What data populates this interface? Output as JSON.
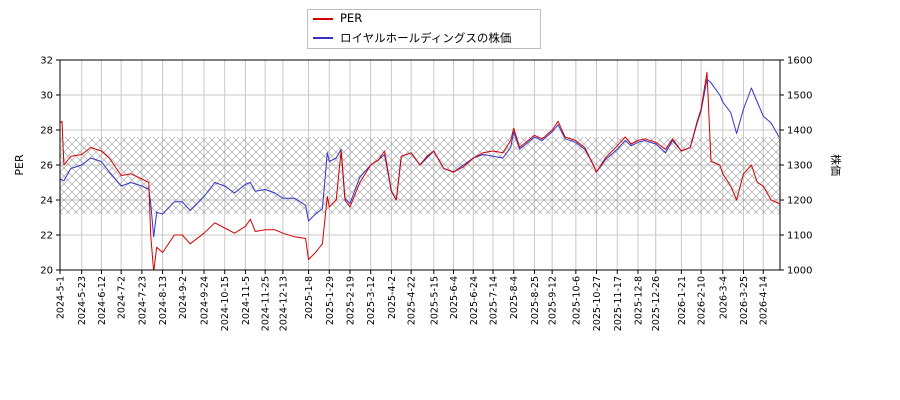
{
  "chart_data": {
    "type": "line",
    "legend": [
      {
        "name": "PER",
        "color": "#d40000"
      },
      {
        "name": "ロイヤルホールディングスの株価",
        "color": "#3333cc"
      }
    ],
    "ylabel_left": "PER",
    "ylabel_right": "株価",
    "ylim_left": [
      20,
      32
    ],
    "ylim_right": [
      1000,
      1600
    ],
    "yticks_left": [
      "20",
      "22",
      "24",
      "26",
      "28",
      "30",
      "32"
    ],
    "yticks_right": [
      "1000",
      "1100",
      "1200",
      "1300",
      "1400",
      "1500",
      "1600"
    ],
    "xlim": [
      "2024-05-01",
      "2026-05-01"
    ],
    "xticks": [
      "2024-5-1",
      "2024-5-23",
      "2024-6-12",
      "2024-7-2",
      "2024-7-23",
      "2024-8-13",
      "2024-9-2",
      "2024-9-24",
      "2024-10-15",
      "2024-11-5",
      "2024-11-25",
      "2024-12-13",
      "2025-1-8",
      "2025-1-29",
      "2025-2-19",
      "2025-3-12",
      "2025-4-2",
      "2025-4-22",
      "2025-5-15",
      "2025-6-4",
      "2025-6-24",
      "2025-7-14",
      "2025-8-4",
      "2025-8-25",
      "2025-9-12",
      "2025-10-6",
      "2025-10-27",
      "2025-11-17",
      "2025-12-8",
      "2025-12-26",
      "2026-1-21",
      "2026-2-10",
      "2026-3-4",
      "2026-3-25",
      "2026-4-14"
    ],
    "band": {
      "from": 23.2,
      "to": 27.6,
      "axis": "left",
      "pattern": "crosshatch"
    },
    "grid": true,
    "legend_position": "top-center",
    "series": [
      {
        "name": "PER",
        "axis": "left",
        "color": "#d40000",
        "points": [
          [
            "2024-05-01",
            28.4
          ],
          [
            "2024-05-03",
            28.5
          ],
          [
            "2024-05-05",
            26.0
          ],
          [
            "2024-05-12",
            26.5
          ],
          [
            "2024-05-23",
            26.6
          ],
          [
            "2024-06-01",
            27.0
          ],
          [
            "2024-06-12",
            26.8
          ],
          [
            "2024-06-20",
            26.4
          ],
          [
            "2024-07-02",
            25.4
          ],
          [
            "2024-07-12",
            25.5
          ],
          [
            "2024-07-23",
            25.2
          ],
          [
            "2024-07-30",
            25.0
          ],
          [
            "2024-08-01",
            22.0
          ],
          [
            "2024-08-04",
            19.9
          ],
          [
            "2024-08-07",
            21.3
          ],
          [
            "2024-08-13",
            21.0
          ],
          [
            "2024-08-25",
            22.0
          ],
          [
            "2024-09-02",
            22.0
          ],
          [
            "2024-09-10",
            21.5
          ],
          [
            "2024-09-24",
            22.1
          ],
          [
            "2024-10-05",
            22.7
          ],
          [
            "2024-10-15",
            22.4
          ],
          [
            "2024-10-25",
            22.1
          ],
          [
            "2024-11-05",
            22.5
          ],
          [
            "2024-11-10",
            22.9
          ],
          [
            "2024-11-15",
            22.2
          ],
          [
            "2024-11-25",
            22.3
          ],
          [
            "2024-12-05",
            22.3
          ],
          [
            "2024-12-13",
            22.1
          ],
          [
            "2024-12-25",
            21.9
          ],
          [
            "2025-01-05",
            21.8
          ],
          [
            "2025-01-08",
            20.6
          ],
          [
            "2025-01-15",
            21.0
          ],
          [
            "2025-01-22",
            21.5
          ],
          [
            "2025-01-27",
            24.2
          ],
          [
            "2025-01-29",
            23.6
          ],
          [
            "2025-02-05",
            24.0
          ],
          [
            "2025-02-10",
            26.8
          ],
          [
            "2025-02-14",
            24.0
          ],
          [
            "2025-02-19",
            23.6
          ],
          [
            "2025-03-01",
            25.0
          ],
          [
            "2025-03-12",
            26.0
          ],
          [
            "2025-03-20",
            26.3
          ],
          [
            "2025-03-26",
            26.8
          ],
          [
            "2025-04-02",
            24.5
          ],
          [
            "2025-04-07",
            24.0
          ],
          [
            "2025-04-12",
            26.5
          ],
          [
            "2025-04-22",
            26.7
          ],
          [
            "2025-05-01",
            26.0
          ],
          [
            "2025-05-08",
            26.5
          ],
          [
            "2025-05-15",
            26.8
          ],
          [
            "2025-05-25",
            25.8
          ],
          [
            "2025-06-04",
            25.6
          ],
          [
            "2025-06-14",
            25.9
          ],
          [
            "2025-06-24",
            26.4
          ],
          [
            "2025-07-04",
            26.7
          ],
          [
            "2025-07-14",
            26.8
          ],
          [
            "2025-07-24",
            26.7
          ],
          [
            "2025-08-01",
            27.4
          ],
          [
            "2025-08-04",
            28.1
          ],
          [
            "2025-08-10",
            27.0
          ],
          [
            "2025-08-25",
            27.7
          ],
          [
            "2025-09-02",
            27.5
          ],
          [
            "2025-09-12",
            28.0
          ],
          [
            "2025-09-18",
            28.5
          ],
          [
            "2025-09-25",
            27.6
          ],
          [
            "2025-10-06",
            27.4
          ],
          [
            "2025-10-15",
            27.0
          ],
          [
            "2025-10-22",
            26.2
          ],
          [
            "2025-10-27",
            25.6
          ],
          [
            "2025-11-05",
            26.4
          ],
          [
            "2025-11-17",
            27.1
          ],
          [
            "2025-11-25",
            27.6
          ],
          [
            "2025-12-01",
            27.2
          ],
          [
            "2025-12-08",
            27.4
          ],
          [
            "2025-12-15",
            27.5
          ],
          [
            "2025-12-26",
            27.3
          ],
          [
            "2026-01-05",
            26.9
          ],
          [
            "2026-01-12",
            27.5
          ],
          [
            "2026-01-21",
            26.8
          ],
          [
            "2026-01-30",
            27.0
          ],
          [
            "2026-02-06",
            28.5
          ],
          [
            "2026-02-10",
            29.2
          ],
          [
            "2026-02-16",
            31.3
          ],
          [
            "2026-02-20",
            26.2
          ],
          [
            "2026-03-01",
            26.0
          ],
          [
            "2026-03-04",
            25.5
          ],
          [
            "2026-03-12",
            24.8
          ],
          [
            "2026-03-18",
            24.0
          ],
          [
            "2026-03-25",
            25.5
          ],
          [
            "2026-04-02",
            26.0
          ],
          [
            "2026-04-08",
            25.0
          ],
          [
            "2026-04-14",
            24.8
          ],
          [
            "2026-04-22",
            24.0
          ],
          [
            "2026-04-30",
            23.8
          ]
        ]
      },
      {
        "name": "ロイヤルホールディングスの株価",
        "axis": "right",
        "color": "#3333cc",
        "points": [
          [
            "2024-05-01",
            1260
          ],
          [
            "2024-05-05",
            1255
          ],
          [
            "2024-05-12",
            1290
          ],
          [
            "2024-05-23",
            1300
          ],
          [
            "2024-06-01",
            1320
          ],
          [
            "2024-06-12",
            1310
          ],
          [
            "2024-06-20",
            1280
          ],
          [
            "2024-07-02",
            1240
          ],
          [
            "2024-07-12",
            1250
          ],
          [
            "2024-07-23",
            1240
          ],
          [
            "2024-07-30",
            1230
          ],
          [
            "2024-08-01",
            1190
          ],
          [
            "2024-08-04",
            1095
          ],
          [
            "2024-08-07",
            1165
          ],
          [
            "2024-08-13",
            1160
          ],
          [
            "2024-08-25",
            1195
          ],
          [
            "2024-09-02",
            1195
          ],
          [
            "2024-09-10",
            1170
          ],
          [
            "2024-09-24",
            1210
          ],
          [
            "2024-10-05",
            1250
          ],
          [
            "2024-10-15",
            1240
          ],
          [
            "2024-10-25",
            1220
          ],
          [
            "2024-11-05",
            1245
          ],
          [
            "2024-11-10",
            1250
          ],
          [
            "2024-11-15",
            1225
          ],
          [
            "2024-11-25",
            1230
          ],
          [
            "2024-12-05",
            1220
          ],
          [
            "2024-12-13",
            1205
          ],
          [
            "2024-12-25",
            1205
          ],
          [
            "2025-01-05",
            1185
          ],
          [
            "2025-01-08",
            1140
          ],
          [
            "2025-01-15",
            1160
          ],
          [
            "2025-01-22",
            1175
          ],
          [
            "2025-01-27",
            1335
          ],
          [
            "2025-01-29",
            1310
          ],
          [
            "2025-02-05",
            1320
          ],
          [
            "2025-02-10",
            1345
          ],
          [
            "2025-02-14",
            1205
          ],
          [
            "2025-02-19",
            1190
          ],
          [
            "2025-03-01",
            1265
          ],
          [
            "2025-03-12",
            1300
          ],
          [
            "2025-03-20",
            1315
          ],
          [
            "2025-03-26",
            1330
          ],
          [
            "2025-04-02",
            1225
          ],
          [
            "2025-04-07",
            1200
          ],
          [
            "2025-04-12",
            1325
          ],
          [
            "2025-04-22",
            1335
          ],
          [
            "2025-05-01",
            1300
          ],
          [
            "2025-05-08",
            1320
          ],
          [
            "2025-05-15",
            1340
          ],
          [
            "2025-05-25",
            1290
          ],
          [
            "2025-06-04",
            1280
          ],
          [
            "2025-06-14",
            1300
          ],
          [
            "2025-06-24",
            1320
          ],
          [
            "2025-07-04",
            1330
          ],
          [
            "2025-07-14",
            1325
          ],
          [
            "2025-07-24",
            1320
          ],
          [
            "2025-08-01",
            1350
          ],
          [
            "2025-08-04",
            1395
          ],
          [
            "2025-08-10",
            1345
          ],
          [
            "2025-08-25",
            1380
          ],
          [
            "2025-09-02",
            1370
          ],
          [
            "2025-09-12",
            1395
          ],
          [
            "2025-09-18",
            1415
          ],
          [
            "2025-09-25",
            1375
          ],
          [
            "2025-10-06",
            1365
          ],
          [
            "2025-10-15",
            1345
          ],
          [
            "2025-10-22",
            1310
          ],
          [
            "2025-10-27",
            1280
          ],
          [
            "2025-11-05",
            1315
          ],
          [
            "2025-11-17",
            1345
          ],
          [
            "2025-11-25",
            1370
          ],
          [
            "2025-12-01",
            1355
          ],
          [
            "2025-12-08",
            1365
          ],
          [
            "2025-12-15",
            1370
          ],
          [
            "2025-12-26",
            1360
          ],
          [
            "2026-01-05",
            1335
          ],
          [
            "2026-01-12",
            1370
          ],
          [
            "2026-01-21",
            1340
          ],
          [
            "2026-01-30",
            1350
          ],
          [
            "2026-02-06",
            1420
          ],
          [
            "2026-02-10",
            1455
          ],
          [
            "2026-02-16",
            1545
          ],
          [
            "2026-02-20",
            1535
          ],
          [
            "2026-03-01",
            1500
          ],
          [
            "2026-03-04",
            1480
          ],
          [
            "2026-03-12",
            1450
          ],
          [
            "2026-03-18",
            1390
          ],
          [
            "2026-03-25",
            1460
          ],
          [
            "2026-04-02",
            1520
          ],
          [
            "2026-04-08",
            1480
          ],
          [
            "2026-04-14",
            1440
          ],
          [
            "2026-04-22",
            1420
          ],
          [
            "2026-04-30",
            1380
          ]
        ]
      }
    ]
  }
}
